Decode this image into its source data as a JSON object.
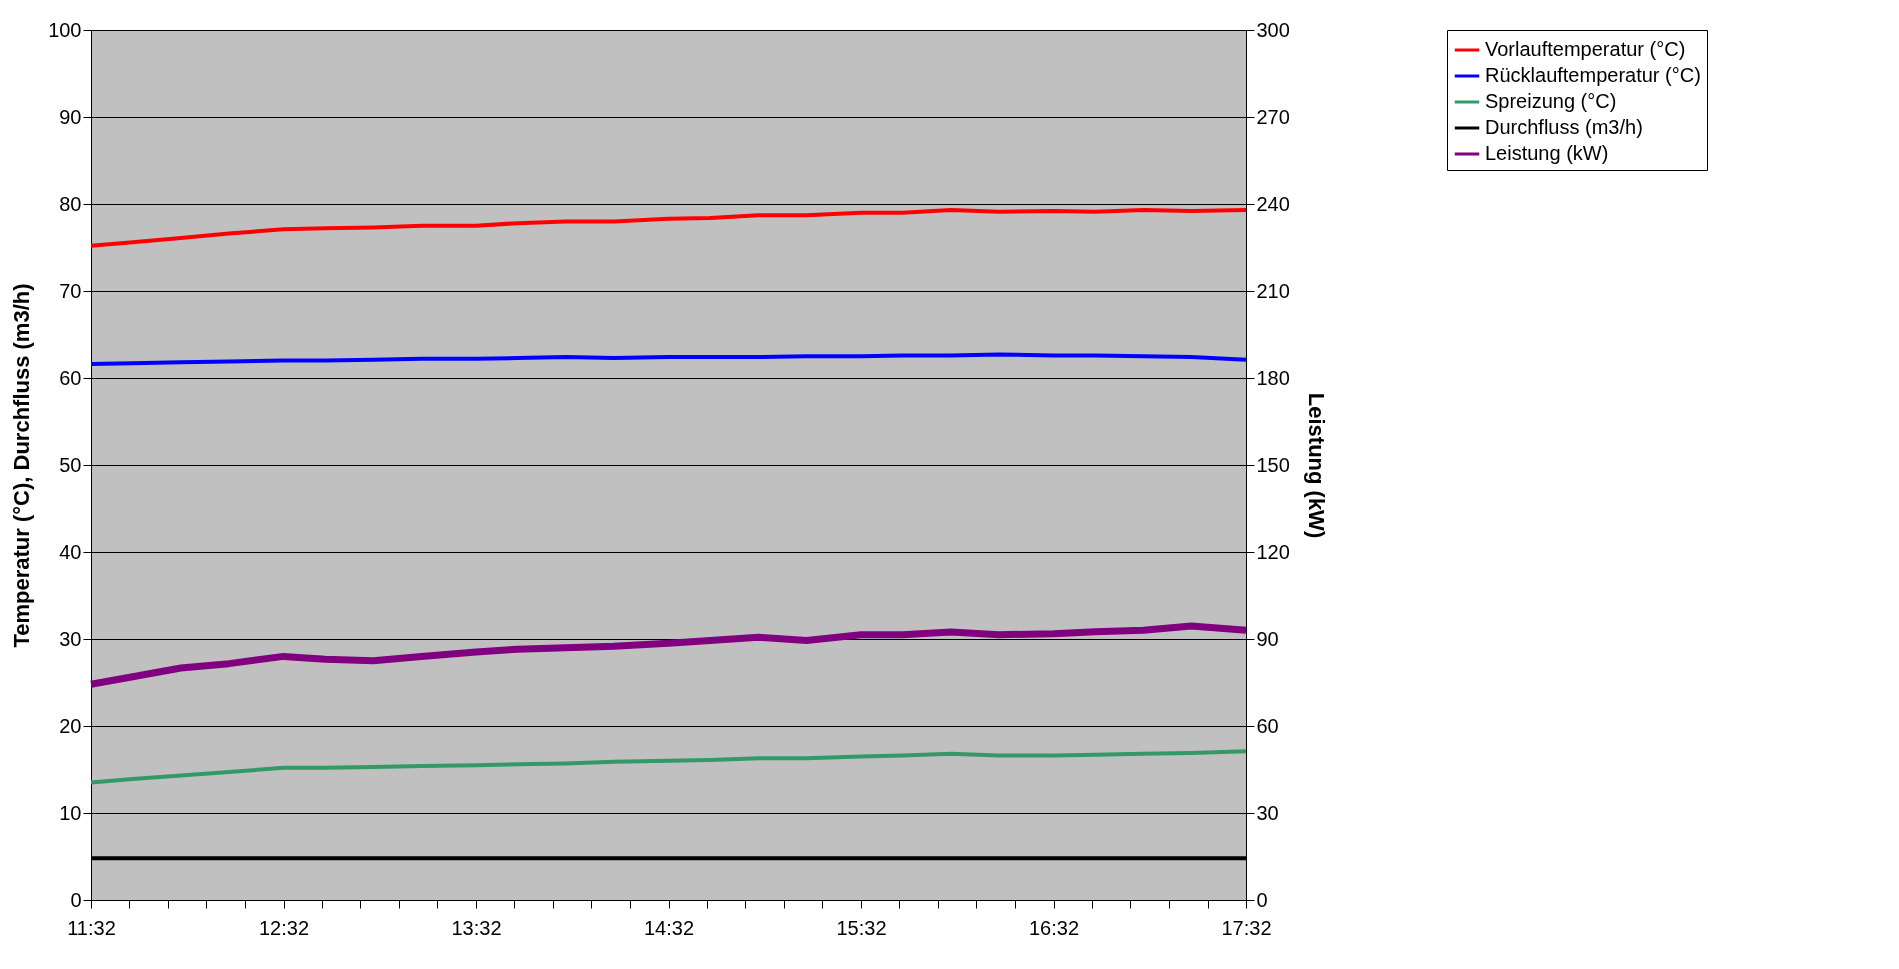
{
  "chart_data": {
    "type": "line",
    "xlabel": null,
    "ylabel": "Temperatur (°C), Durchfluss (m3/h)",
    "y2label": "Leistung (kW)",
    "x": [
      11.5333,
      11.75,
      12.0,
      12.25,
      12.5333,
      12.75,
      13.0,
      13.25,
      13.5333,
      13.75,
      14.0,
      14.25,
      14.5333,
      14.75,
      15.0,
      15.25,
      15.5333,
      15.75,
      16.0,
      16.25,
      16.5333,
      16.75,
      17.0,
      17.25,
      17.5333
    ],
    "series": [
      {
        "name": "Vorlauftemperatur (°C)",
        "color": "#ff0000",
        "values": [
          75.2,
          75.6,
          76.1,
          76.6,
          77.1,
          77.2,
          77.3,
          77.5,
          77.5,
          77.8,
          78.0,
          78.0,
          78.3,
          78.4,
          78.7,
          78.7,
          79.0,
          79.0,
          79.3,
          79.1,
          79.2,
          79.1,
          79.3,
          79.2,
          79.3
        ]
      },
      {
        "name": "Rücklauftemperatur (°C)",
        "color": "#0000ff",
        "values": [
          61.6,
          61.7,
          61.8,
          61.9,
          62.0,
          62.0,
          62.1,
          62.2,
          62.2,
          62.3,
          62.4,
          62.3,
          62.4,
          62.4,
          62.4,
          62.5,
          62.5,
          62.6,
          62.6,
          62.7,
          62.6,
          62.6,
          62.5,
          62.4,
          62.1
        ]
      },
      {
        "name": "Spreizung (°C)",
        "color": "#339966",
        "values": [
          13.5,
          13.9,
          14.3,
          14.7,
          15.2,
          15.2,
          15.3,
          15.4,
          15.5,
          15.6,
          15.7,
          15.9,
          16.0,
          16.1,
          16.3,
          16.3,
          16.5,
          16.6,
          16.8,
          16.6,
          16.6,
          16.7,
          16.8,
          16.9,
          17.1
        ]
      },
      {
        "name": "Durchfluss (m3/h)",
        "color": "#000000",
        "values": [
          4.8,
          4.8,
          4.8,
          4.8,
          4.8,
          4.8,
          4.8,
          4.8,
          4.8,
          4.8,
          4.8,
          4.8,
          4.8,
          4.8,
          4.8,
          4.8,
          4.8,
          4.8,
          4.8,
          4.8,
          4.8,
          4.8,
          4.8,
          4.8,
          4.8
        ]
      },
      {
        "name": "Leistung (kW)",
        "color": "#800080",
        "axis": "y2",
        "values": [
          74.4,
          77.0,
          80.0,
          81.5,
          84.0,
          83.0,
          82.5,
          84.0,
          85.5,
          86.5,
          87.0,
          87.5,
          88.5,
          89.5,
          90.6,
          89.5,
          91.5,
          91.5,
          92.4,
          91.5,
          91.8,
          92.5,
          93.0,
          94.5,
          93.0
        ]
      }
    ],
    "xlim": [
      11.5333,
      17.5333
    ],
    "xticks": [
      {
        "value": 11.5333,
        "label": "11:32"
      },
      {
        "value": 11.7333,
        "label": null
      },
      {
        "value": 11.9333,
        "label": null
      },
      {
        "value": 12.1333,
        "label": null
      },
      {
        "value": 12.3333,
        "label": null
      },
      {
        "value": 12.5333,
        "label": "12:32"
      },
      {
        "value": 12.7333,
        "label": null
      },
      {
        "value": 12.9333,
        "label": null
      },
      {
        "value": 13.1333,
        "label": null
      },
      {
        "value": 13.3333,
        "label": null
      },
      {
        "value": 13.5333,
        "label": "13:32"
      },
      {
        "value": 13.7333,
        "label": null
      },
      {
        "value": 13.9333,
        "label": null
      },
      {
        "value": 14.1333,
        "label": null
      },
      {
        "value": 14.3333,
        "label": null
      },
      {
        "value": 14.5333,
        "label": "14:32"
      },
      {
        "value": 14.7333,
        "label": null
      },
      {
        "value": 14.9333,
        "label": null
      },
      {
        "value": 15.1333,
        "label": null
      },
      {
        "value": 15.3333,
        "label": null
      },
      {
        "value": 15.5333,
        "label": "15:32"
      },
      {
        "value": 15.7333,
        "label": null
      },
      {
        "value": 15.9333,
        "label": null
      },
      {
        "value": 16.1333,
        "label": null
      },
      {
        "value": 16.3333,
        "label": null
      },
      {
        "value": 16.5333,
        "label": "16:32"
      },
      {
        "value": 16.7333,
        "label": null
      },
      {
        "value": 16.9333,
        "label": null
      },
      {
        "value": 17.1333,
        "label": null
      },
      {
        "value": 17.3333,
        "label": null
      },
      {
        "value": 17.5333,
        "label": "17:32"
      }
    ],
    "ylim": [
      0,
      100
    ],
    "yticks": [
      0,
      10,
      20,
      30,
      40,
      50,
      60,
      70,
      80,
      90,
      100
    ],
    "y2lim": [
      0,
      300
    ],
    "y2ticks": [
      0,
      30,
      60,
      90,
      120,
      150,
      180,
      210,
      240,
      270,
      300
    ],
    "grid": "y",
    "legend": "right",
    "marker": "none",
    "line_style": "solid"
  }
}
